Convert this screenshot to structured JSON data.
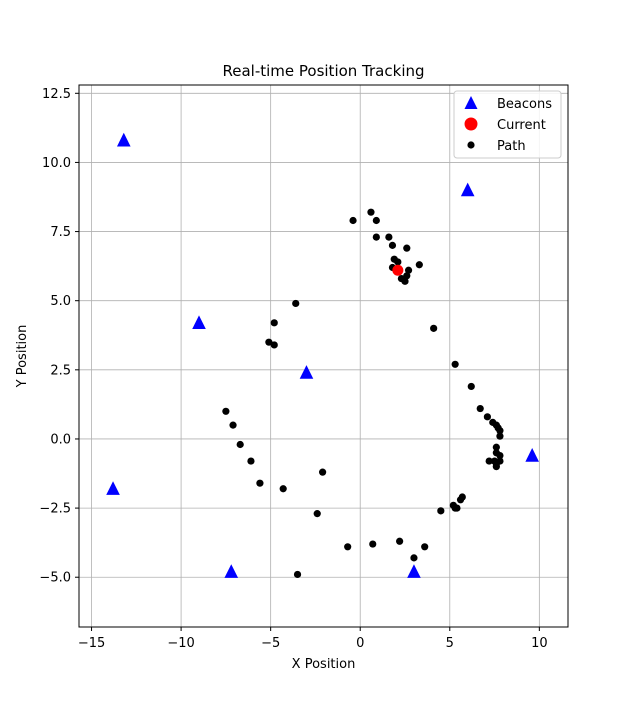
{
  "chart_data": {
    "type": "scatter",
    "title": "Real-time Position Tracking",
    "xlabel": "X Position",
    "ylabel": "Y Position",
    "xlim": [
      -15.7,
      11.6
    ],
    "ylim": [
      -6.8,
      12.8
    ],
    "xticks": [
      -15,
      -10,
      -5,
      0,
      5,
      10
    ],
    "yticks": [
      -5.0,
      -2.5,
      0.0,
      2.5,
      5.0,
      7.5,
      10.0,
      12.5
    ],
    "xtick_labels": [
      "−15",
      "−10",
      "−5",
      "0",
      "5",
      "10"
    ],
    "ytick_labels": [
      "−5.0",
      "−2.5",
      "0.0",
      "2.5",
      "5.0",
      "7.5",
      "10.0",
      "12.5"
    ],
    "grid": true,
    "legend_position": "top-right",
    "series": [
      {
        "name": "Beacons",
        "marker": "triangle",
        "color": "#0000ff",
        "points": [
          [
            -13.2,
            10.8
          ],
          [
            6.0,
            9.0
          ],
          [
            -9.0,
            4.2
          ],
          [
            -3.0,
            2.4
          ],
          [
            9.6,
            -0.6
          ],
          [
            -13.8,
            -1.8
          ],
          [
            -7.2,
            -4.8
          ],
          [
            3.0,
            -4.8
          ]
        ]
      },
      {
        "name": "Current",
        "marker": "circle",
        "color": "#ff0000",
        "points": [
          [
            2.1,
            6.1
          ]
        ]
      },
      {
        "name": "Path",
        "marker": "circle",
        "color": "#000000",
        "points": [
          [
            0.6,
            8.2
          ],
          [
            -0.4,
            7.9
          ],
          [
            0.9,
            7.9
          ],
          [
            0.9,
            7.3
          ],
          [
            1.6,
            7.3
          ],
          [
            1.8,
            7.0
          ],
          [
            2.6,
            6.9
          ],
          [
            1.9,
            6.5
          ],
          [
            2.1,
            6.4
          ],
          [
            1.8,
            6.2
          ],
          [
            3.3,
            6.3
          ],
          [
            2.7,
            6.1
          ],
          [
            2.3,
            5.8
          ],
          [
            2.6,
            5.9
          ],
          [
            2.5,
            5.7
          ],
          [
            -3.6,
            4.9
          ],
          [
            4.1,
            4.0
          ],
          [
            -4.8,
            4.2
          ],
          [
            -5.1,
            3.5
          ],
          [
            -4.8,
            3.4
          ],
          [
            5.3,
            2.7
          ],
          [
            6.2,
            1.9
          ],
          [
            6.7,
            1.1
          ],
          [
            7.1,
            0.8
          ],
          [
            7.4,
            0.6
          ],
          [
            7.6,
            0.5
          ],
          [
            7.7,
            0.4
          ],
          [
            7.8,
            0.3
          ],
          [
            7.8,
            0.1
          ],
          [
            -7.5,
            1.0
          ],
          [
            -7.1,
            0.5
          ],
          [
            -6.7,
            -0.2
          ],
          [
            7.6,
            -0.3
          ],
          [
            7.6,
            -0.5
          ],
          [
            7.8,
            -0.6
          ],
          [
            7.8,
            -0.8
          ],
          [
            7.5,
            -0.8
          ],
          [
            7.6,
            -0.9
          ],
          [
            7.2,
            -0.8
          ],
          [
            7.6,
            -1.0
          ],
          [
            -6.1,
            -0.8
          ],
          [
            -2.1,
            -1.2
          ],
          [
            -5.6,
            -1.6
          ],
          [
            -4.3,
            -1.8
          ],
          [
            -2.4,
            -2.7
          ],
          [
            4.5,
            -2.6
          ],
          [
            5.6,
            -2.2
          ],
          [
            5.7,
            -2.1
          ],
          [
            5.2,
            -2.4
          ],
          [
            5.3,
            -2.5
          ],
          [
            5.4,
            -2.5
          ],
          [
            2.2,
            -3.7
          ],
          [
            0.7,
            -3.8
          ],
          [
            -0.7,
            -3.9
          ],
          [
            3.6,
            -3.9
          ],
          [
            3.0,
            -4.3
          ],
          [
            -3.5,
            -4.9
          ]
        ]
      }
    ]
  }
}
